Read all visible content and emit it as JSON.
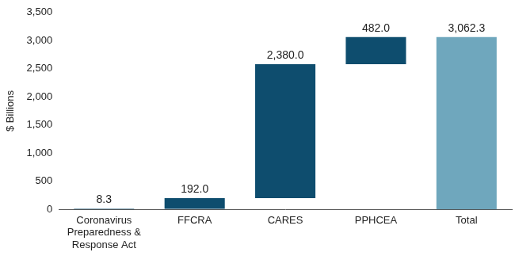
{
  "chart_data": {
    "type": "waterfall",
    "y_label": "$ Billions",
    "categories": [
      "Coronavirus Preparedness & Response Act",
      "FFCRA",
      "CARES",
      "PPHCEA",
      "Total"
    ],
    "values": [
      8.3,
      192.0,
      2380.0,
      482.0,
      3062.3
    ],
    "value_labels": [
      "8.3",
      "192.0",
      "2,380.0",
      "482.0",
      "3,062.3"
    ],
    "colors": [
      "#0e4d6e",
      "#0e4d6e",
      "#0e4d6e",
      "#0e4d6e",
      "#6fa7bd"
    ],
    "ylim": [
      0,
      3500
    ],
    "yticks": [
      0,
      500,
      {
        "value": 1000,
        "label": "1,000"
      },
      {
        "value": 1500,
        "label": "1,500"
      },
      {
        "value": 2000,
        "label": "2,000"
      },
      {
        "value": 2500,
        "label": "2,500"
      },
      {
        "value": 3000,
        "label": "3,000"
      },
      {
        "value": 3500,
        "label": "3,500"
      }
    ],
    "grid": false,
    "data_labels": true
  }
}
